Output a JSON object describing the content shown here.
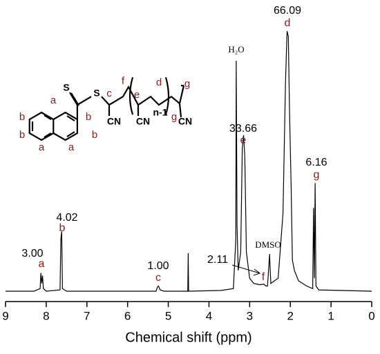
{
  "chart_data": {
    "type": "line",
    "xlabel": "Chemical shift (ppm)",
    "xlim": [
      9,
      0
    ],
    "xticks": [
      9,
      8,
      7,
      6,
      5,
      4,
      3,
      2,
      1,
      0
    ],
    "ylim": [
      0,
      100
    ],
    "series": [
      {
        "color": "#000000",
        "x": [
          9.0,
          8.3,
          8.15,
          8.13,
          8.11,
          8.09,
          8.07,
          8.0,
          7.66,
          7.64,
          7.62,
          7.6,
          7.5,
          5.3,
          5.27,
          5.24,
          5.2,
          5.1,
          4.52,
          4.51,
          4.5,
          3.7,
          3.4,
          3.34,
          3.33,
          3.31,
          3.28,
          3.22,
          3.18,
          3.15,
          3.12,
          3.08,
          3.0,
          2.9,
          2.75,
          2.65,
          2.6,
          2.56,
          2.51,
          2.5,
          2.48,
          2.3,
          2.18,
          2.12,
          2.08,
          2.05,
          2.02,
          1.98,
          1.95,
          1.9,
          1.8,
          1.6,
          1.45,
          1.43,
          1.41,
          1.39,
          1.37,
          1.3,
          0.0
        ],
        "values": [
          0,
          0,
          1,
          7,
          3,
          6,
          1,
          0,
          0.5,
          20,
          23,
          1,
          0,
          0,
          1.5,
          2,
          0.5,
          0,
          0,
          14.6,
          0,
          0.3,
          1,
          20,
          88.6,
          25,
          8,
          15,
          55,
          60,
          52,
          15,
          5,
          3,
          2.5,
          2.7,
          2,
          2,
          14.3,
          10,
          3,
          5,
          30,
          80,
          100,
          98,
          70,
          40,
          12,
          8,
          4,
          2,
          1,
          32,
          5,
          41.6,
          2,
          0.5,
          0
        ]
      }
    ],
    "annotations": [
      {
        "integral": "3.00",
        "proton": "a"
      },
      {
        "integral": "4.02",
        "proton": "b"
      },
      {
        "integral": "1.00",
        "proton": "c"
      },
      {
        "integral": "2.11",
        "proton": "f"
      },
      {
        "integral": "33.66",
        "proton": "e"
      },
      {
        "integral": "66.09",
        "proton": "d"
      },
      {
        "integral": "6.16",
        "proton": "g"
      }
    ],
    "peak_labels": [
      "H₂O",
      "DMSO"
    ],
    "structure_labels": [
      "S",
      "S",
      "c",
      "CN",
      "f",
      "e",
      "CN",
      "d",
      "n-1",
      "g",
      "g",
      "CN",
      "a",
      "a",
      "a",
      "b",
      "b",
      "b",
      "b"
    ]
  }
}
